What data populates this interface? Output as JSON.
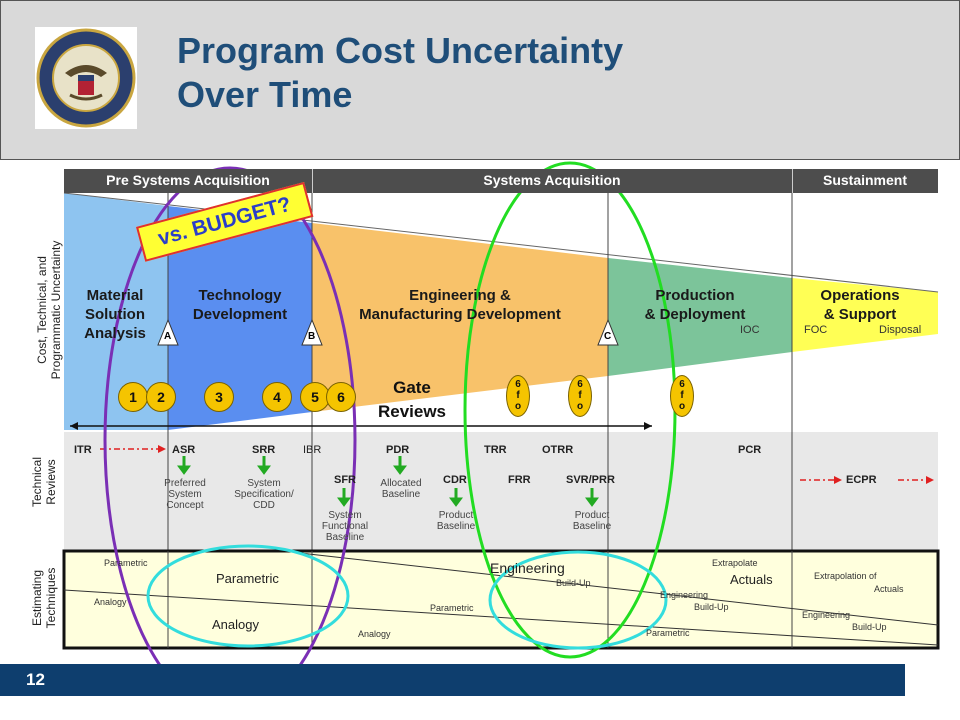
{
  "header": {
    "title_line1": "Program Cost Uncertainty",
    "title_line2": "Over Time",
    "logo_text": "DEPARTMENT OF THE NAVY · CENTER FOR COST ANALYSIS"
  },
  "phases_bar": {
    "pre": "Pre Systems Acquisition",
    "systems": "Systems Acquisition",
    "sustain": "Sustainment"
  },
  "phases": {
    "msa": [
      "Material",
      "Solution",
      "Analysis"
    ],
    "td": [
      "Technology",
      "Development"
    ],
    "emd": [
      "Engineering &",
      "Manufacturing Development"
    ],
    "pd": [
      "Production",
      "& Deployment"
    ],
    "os": [
      "Operations",
      "& Support"
    ]
  },
  "milestones": {
    "a": "A",
    "b": "B",
    "c": "C",
    "ioc": "IOC",
    "foc": "FOC",
    "disposal": "Disposal"
  },
  "gate_numbers": [
    "1",
    "2",
    "3",
    "4",
    "5",
    "6"
  ],
  "gate_ovals": [
    [
      "6",
      "f",
      "o"
    ],
    [
      "6",
      "f",
      "o"
    ],
    [
      "6",
      "f",
      "o"
    ]
  ],
  "gate_reviews": [
    "Gate",
    "Reviews"
  ],
  "budget_callout": "vs. BUDGET?",
  "side_labels": {
    "cost": [
      "Cost, Technical, and",
      "Programmatic Uncertainty"
    ],
    "tech": [
      "Technical",
      "Reviews"
    ],
    "est": [
      "Estimating",
      "Techniques"
    ]
  },
  "reviews": {
    "itr": "ITR",
    "asr": "ASR",
    "srr": "SRR",
    "ibr": "IBR",
    "pdr": "PDR",
    "trr": "TRR",
    "otrr": "OTRR",
    "pcr": "PCR",
    "sfr": "SFR",
    "cdr": "CDR",
    "frr": "FRR",
    "svr": "SVR/PRR",
    "ecpr": "ECPR"
  },
  "baselines": {
    "preferred": [
      "Preferred",
      "System",
      "Concept"
    ],
    "sysspec": [
      "System",
      "Specification/",
      "CDD"
    ],
    "allocated": [
      "Allocated",
      "Baseline"
    ],
    "sysfunc": [
      "System",
      "Functional",
      "Baseline"
    ],
    "product1": [
      "Product",
      "Baseline"
    ],
    "product2": [
      "Product",
      "Baseline"
    ]
  },
  "estimating": {
    "parametric_top": "Parametric",
    "analogy_left": "Analogy",
    "parametric_big": "Parametric",
    "analogy_big": "Analogy",
    "engineering_big": "Engineering",
    "buildup1": "Build-Up",
    "parametric_mid": "Parametric",
    "analogy_low": "Analogy",
    "extrapolate": "Extrapolate",
    "actuals": "Actuals",
    "engineering_pd": "Engineering",
    "buildup_pd": "Build-Up",
    "parametric_pd": "Parametric",
    "extrap_os": "Extrapolation of",
    "actuals_os": "Actuals",
    "engineering_os": "Engineering",
    "buildup_os": "Build-Up"
  },
  "footer": {
    "page": "12"
  }
}
